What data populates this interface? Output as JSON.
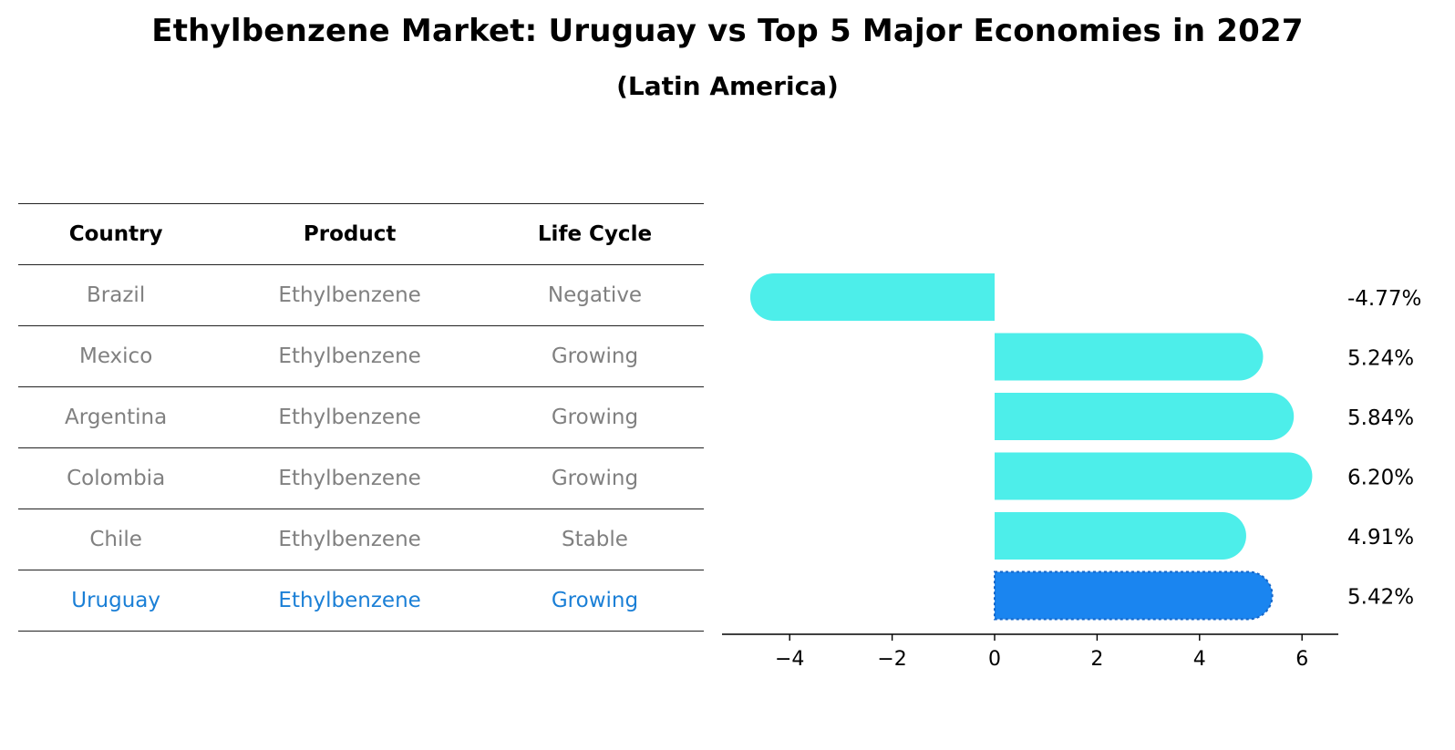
{
  "title": "Ethylbenzene Market: Uruguay vs Top 5 Major Economies in 2027",
  "subtitle": "(Latin America)",
  "table": {
    "headers": [
      "Country",
      "Product",
      "Life Cycle"
    ],
    "rows": [
      {
        "country": "Brazil",
        "product": "Ethylbenzene",
        "life_cycle": "Negative"
      },
      {
        "country": "Mexico",
        "product": "Ethylbenzene",
        "life_cycle": "Growing"
      },
      {
        "country": "Argentina",
        "product": "Ethylbenzene",
        "life_cycle": "Growing"
      },
      {
        "country": "Colombia",
        "product": "Ethylbenzene",
        "life_cycle": "Growing"
      },
      {
        "country": "Chile",
        "product": "Ethylbenzene",
        "life_cycle": "Stable"
      },
      {
        "country": "Uruguay",
        "product": "Ethylbenzene",
        "life_cycle": "Growing",
        "highlight": true
      }
    ]
  },
  "chart_data": {
    "type": "bar",
    "orientation": "horizontal",
    "categories": [
      "Brazil",
      "Mexico",
      "Argentina",
      "Colombia",
      "Chile",
      "Uruguay"
    ],
    "values": [
      -4.77,
      5.24,
      5.84,
      6.2,
      4.91,
      5.42
    ],
    "value_labels": [
      "-4.77%",
      "5.24%",
      "5.84%",
      "6.20%",
      "4.91%",
      "5.42%"
    ],
    "highlight_category": "Uruguay",
    "xlim": [
      -5.35,
      6.7
    ],
    "xticks": [
      -4,
      -2,
      0,
      2,
      4,
      6
    ],
    "xtick_labels": [
      "−4",
      "−2",
      "0",
      "2",
      "4",
      "6"
    ],
    "colors": {
      "default": "#4deeea",
      "highlight": "#1a85f0"
    },
    "grid": false,
    "legend": "none",
    "xlabel": "",
    "ylabel": ""
  }
}
